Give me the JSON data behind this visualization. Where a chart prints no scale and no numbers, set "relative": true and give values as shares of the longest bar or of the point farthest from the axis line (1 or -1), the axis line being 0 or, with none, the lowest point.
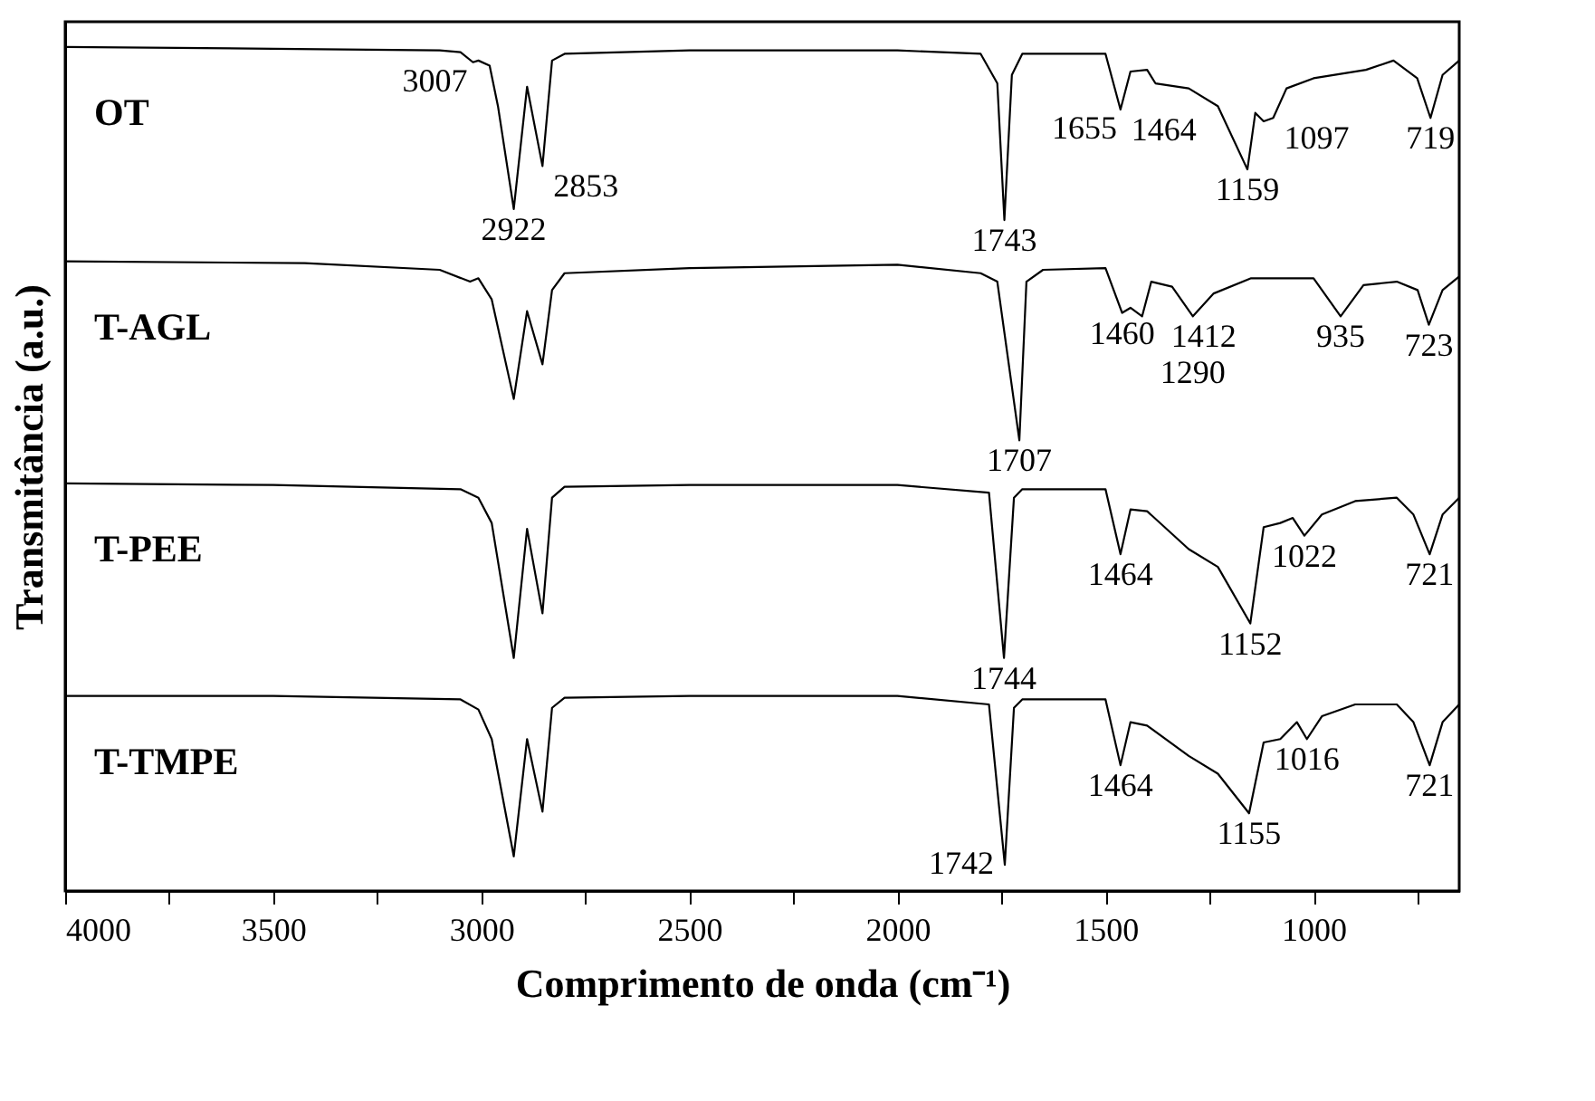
{
  "chart_data": {
    "type": "line",
    "relative": true,
    "xlabel": "Comprimento de onda (cm⁻¹)",
    "ylabel": "Transmitância (a.u.)",
    "xlim": [
      4000,
      650
    ],
    "xticks": [
      4000,
      {
        "value": 3750,
        "label": null
      },
      3500,
      {
        "value": 3250,
        "label": null
      },
      3000,
      {
        "value": 2750,
        "label": null
      },
      2500,
      {
        "value": 2250,
        "label": null
      },
      2000,
      {
        "value": 1750,
        "label": null
      },
      1500,
      {
        "value": 1250,
        "label": null
      },
      1000,
      {
        "value": 750,
        "label": null
      }
    ],
    "tick_labels": "x",
    "grid": false,
    "legend": false,
    "marker": "none",
    "line_style": "solid",
    "series": [
      {
        "name": "OT",
        "color": "#000000",
        "x": [
          4000,
          3500,
          3100,
          3050,
          3020,
          3007,
          2980,
          2960,
          2922,
          2890,
          2853,
          2830,
          2800,
          2500,
          2000,
          1800,
          1760,
          1743,
          1725,
          1700,
          1655,
          1500,
          1464,
          1440,
          1400,
          1380,
          1300,
          1230,
          1159,
          1140,
          1120,
          1097,
          1065,
          1000,
          874,
          808,
          751,
          719,
          690,
          650
        ],
        "values": [
          1.0,
          0.998,
          0.996,
          0.994,
          0.982,
          0.984,
          0.978,
          0.93,
          0.808,
          0.953,
          0.859,
          0.984,
          0.992,
          0.996,
          0.996,
          0.992,
          0.957,
          0.795,
          0.967,
          0.992,
          0.992,
          0.992,
          0.926,
          0.971,
          0.973,
          0.957,
          0.951,
          0.93,
          0.855,
          0.922,
          0.912,
          0.916,
          0.951,
          0.963,
          0.973,
          0.984,
          0.963,
          0.916,
          0.967,
          0.984
        ]
      },
      {
        "name": "T-AGL",
        "color": "#000000",
        "x": [
          4000,
          3424,
          3100,
          3027,
          3007,
          2975,
          2922,
          2890,
          2853,
          2830,
          2800,
          2500,
          2000,
          1800,
          1760,
          1707,
          1690,
          1650,
          1500,
          1460,
          1440,
          1412,
          1390,
          1340,
          1290,
          1240,
          1150,
          1000,
          935,
          880,
          800,
          750,
          723,
          690,
          650
        ],
        "values": [
          0.746,
          0.744,
          0.736,
          0.722,
          0.726,
          0.701,
          0.583,
          0.687,
          0.624,
          0.712,
          0.732,
          0.738,
          0.742,
          0.732,
          0.722,
          0.534,
          0.722,
          0.736,
          0.738,
          0.685,
          0.691,
          0.681,
          0.722,
          0.716,
          0.681,
          0.708,
          0.726,
          0.726,
          0.681,
          0.718,
          0.722,
          0.712,
          0.671,
          0.712,
          0.728
        ]
      },
      {
        "name": "T-PEE",
        "color": "#000000",
        "x": [
          4000,
          3500,
          3050,
          3007,
          2975,
          2922,
          2890,
          2853,
          2830,
          2800,
          2500,
          2000,
          1780,
          1744,
          1720,
          1700,
          1500,
          1464,
          1440,
          1400,
          1300,
          1230,
          1152,
          1120,
          1080,
          1050,
          1022,
          980,
          900,
          800,
          760,
          721,
          690,
          650
        ],
        "values": [
          0.483,
          0.481,
          0.476,
          0.466,
          0.436,
          0.276,
          0.429,
          0.329,
          0.466,
          0.479,
          0.481,
          0.481,
          0.472,
          0.276,
          0.466,
          0.476,
          0.476,
          0.399,
          0.452,
          0.45,
          0.405,
          0.384,
          0.317,
          0.431,
          0.436,
          0.442,
          0.421,
          0.446,
          0.462,
          0.466,
          0.446,
          0.399,
          0.446,
          0.466
        ]
      },
      {
        "name": "T-TMPE",
        "color": "#000000",
        "x": [
          4000,
          3500,
          3050,
          3007,
          2975,
          2922,
          2890,
          2853,
          2830,
          2800,
          2500,
          2000,
          1780,
          1742,
          1720,
          1700,
          1500,
          1464,
          1440,
          1400,
          1300,
          1230,
          1155,
          1120,
          1080,
          1040,
          1016,
          980,
          900,
          800,
          760,
          721,
          690,
          650
        ],
        "values": [
          0.231,
          0.231,
          0.227,
          0.215,
          0.18,
          0.041,
          0.18,
          0.094,
          0.217,
          0.229,
          0.231,
          0.231,
          0.221,
          0.031,
          0.217,
          0.227,
          0.227,
          0.149,
          0.2,
          0.196,
          0.16,
          0.139,
          0.092,
          0.176,
          0.18,
          0.2,
          0.18,
          0.207,
          0.221,
          0.221,
          0.2,
          0.149,
          0.2,
          0.221
        ]
      }
    ],
    "annotations": [
      {
        "text": "3007",
        "x": 3007,
        "y": 0.984
      },
      {
        "text": "2922",
        "x": 2922,
        "y": 0.808
      },
      {
        "text": "2853",
        "x": 2853,
        "y": 0.859
      },
      {
        "text": "1743",
        "x": 1743,
        "y": 0.795
      },
      {
        "text": "1655",
        "x": 1655,
        "y": 0.992
      },
      {
        "text": "1464",
        "x": 1464,
        "y": 0.926
      },
      {
        "text": "1159",
        "x": 1159,
        "y": 0.855
      },
      {
        "text": "1097",
        "x": 1097,
        "y": 0.916
      },
      {
        "text": "719",
        "x": 719,
        "y": 0.916
      },
      {
        "text": "1707",
        "x": 1707,
        "y": 0.534
      },
      {
        "text": "1460",
        "x": 1460,
        "y": 0.685
      },
      {
        "text": "1412",
        "x": 1412,
        "y": 0.681
      },
      {
        "text": "1290",
        "x": 1290,
        "y": 0.681
      },
      {
        "text": "935",
        "x": 935,
        "y": 0.681
      },
      {
        "text": "723",
        "x": 723,
        "y": 0.671
      },
      {
        "text": "1744",
        "x": 1744,
        "y": 0.276
      },
      {
        "text": "1464",
        "x": 1464,
        "y": 0.399
      },
      {
        "text": "1152",
        "x": 1152,
        "y": 0.317
      },
      {
        "text": "1022",
        "x": 1022,
        "y": 0.421
      },
      {
        "text": "721",
        "x": 721,
        "y": 0.399
      },
      {
        "text": "1742",
        "x": 1742,
        "y": 0.031
      },
      {
        "text": "1464",
        "x": 1464,
        "y": 0.149
      },
      {
        "text": "1155",
        "x": 1155,
        "y": 0.092
      },
      {
        "text": "1016",
        "x": 1016,
        "y": 0.18
      },
      {
        "text": "721",
        "x": 721,
        "y": 0.149
      }
    ]
  }
}
